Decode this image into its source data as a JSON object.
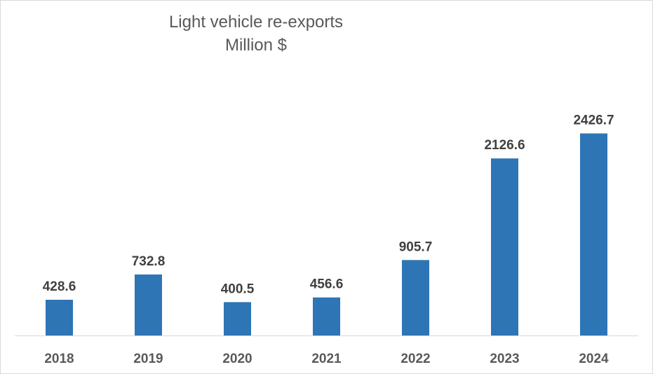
{
  "chart_data": {
    "type": "bar",
    "title": "Light vehicle re-exports",
    "subtitle": "Million $",
    "xlabel": "",
    "ylabel": "",
    "categories": [
      "2018",
      "2019",
      "2020",
      "2021",
      "2022",
      "2023",
      "2024"
    ],
    "values": [
      428.6,
      732.8,
      400.5,
      456.6,
      905.7,
      2126.6,
      2426.7
    ],
    "value_labels": [
      "428.6",
      "732.8",
      "400.5",
      "456.6",
      "905.7",
      "2126.6",
      "2426.7"
    ],
    "ylim": [
      0,
      2700
    ],
    "grid": false,
    "legend": "none",
    "bar_color": "#2E75B6",
    "axis_color": "#d9d9d9"
  }
}
